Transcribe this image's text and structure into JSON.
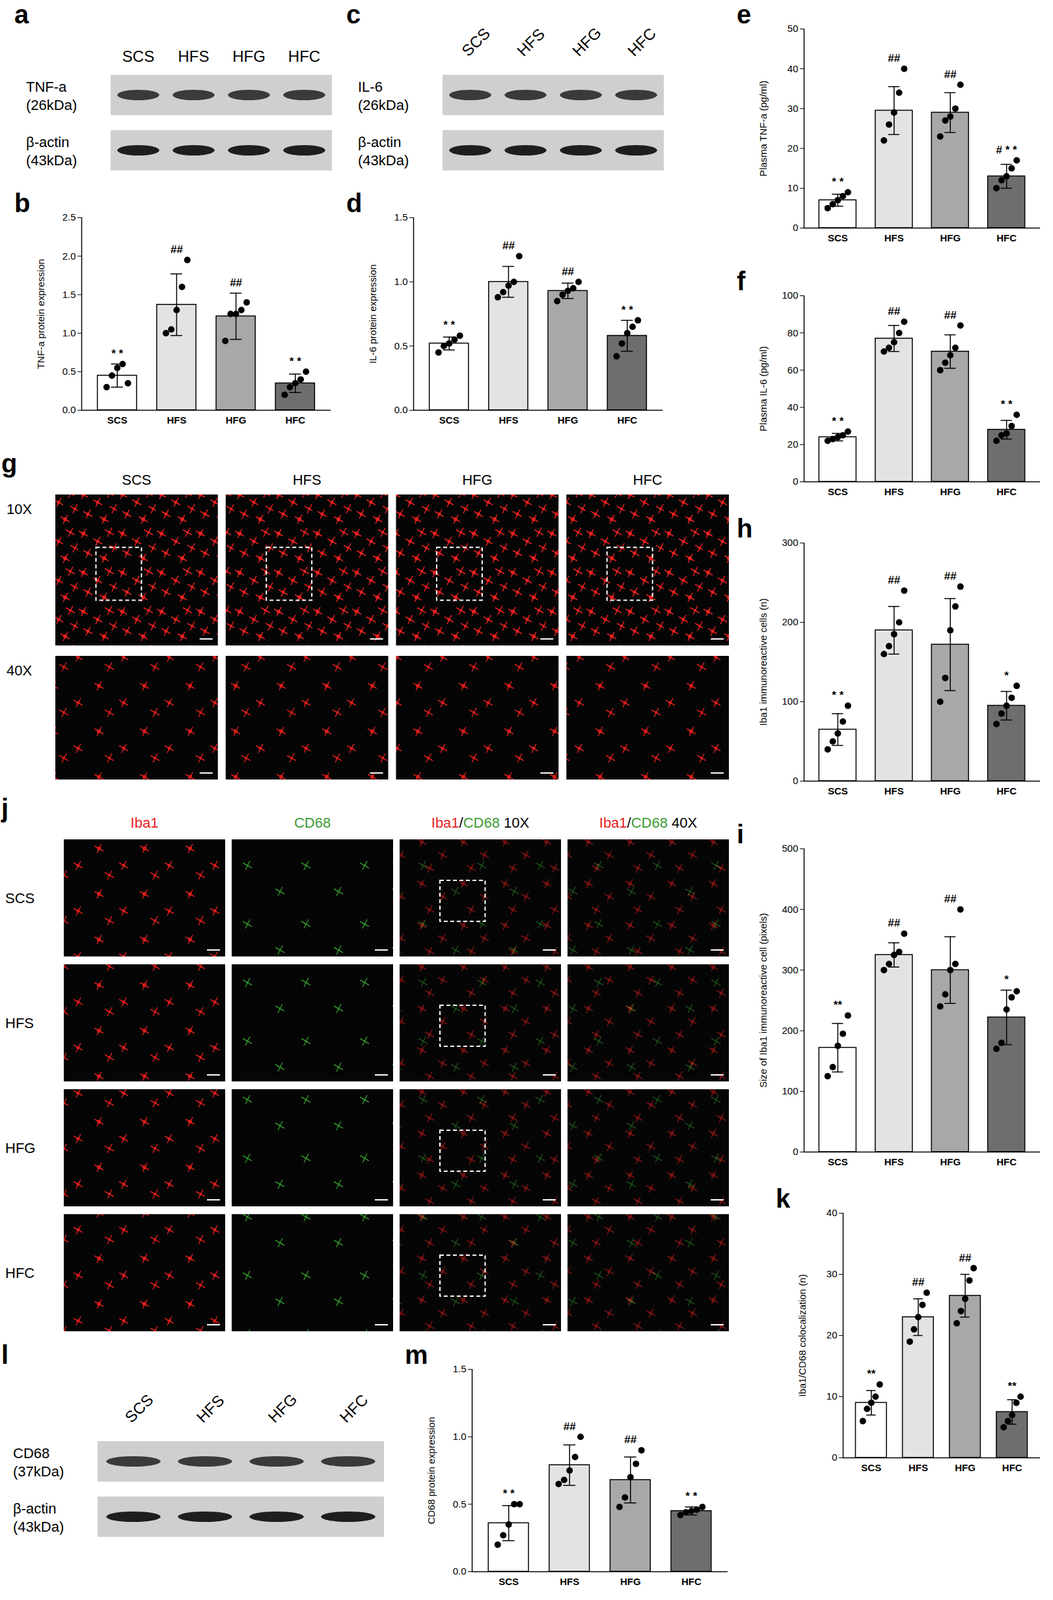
{
  "figure": {
    "blots": [
      {
        "panel": "a",
        "lanes": [
          "SCS",
          "HFS",
          "HFG",
          "HFC"
        ],
        "rows": [
          [
            "TNF-a",
            "(26kDa)"
          ],
          [
            "β-actin",
            "(43kDa)"
          ]
        ]
      },
      {
        "panel": "c",
        "lanes": [
          "SCS",
          "HFS",
          "HFG",
          "HFC"
        ],
        "rows": [
          [
            "IL-6",
            "(26kDa)"
          ],
          [
            "β-actin",
            "(43kDa)"
          ]
        ]
      },
      {
        "panel": "l",
        "lanes": [
          "SCS",
          "HFS",
          "HFG",
          "HFC"
        ],
        "rows": [
          [
            "CD68",
            "(37kDa)"
          ],
          [
            "β-actin",
            "(43kDa)"
          ]
        ]
      }
    ],
    "micrographs": [
      {
        "panel": "g",
        "columns": [
          "SCS",
          "HFS",
          "HFG",
          "HFC"
        ],
        "rows": [
          "10X",
          "40X"
        ]
      },
      {
        "panel": "j",
        "columns": [
          [
            {
              "text": "Iba1",
              "color": "#e8201e"
            }
          ],
          [
            {
              "text": "CD68",
              "color": "#3c9a35"
            }
          ],
          [
            {
              "text": "Iba1",
              "color": "#e8201e"
            },
            {
              "text": "/",
              "color": "#000000"
            },
            {
              "text": "CD68",
              "color": "#3c9a35"
            },
            {
              "text": " 10X",
              "color": "#000000"
            }
          ],
          [
            {
              "text": "Iba1",
              "color": "#e8201e"
            },
            {
              "text": "/",
              "color": "#000000"
            },
            {
              "text": "CD68",
              "color": "#3c9a35"
            },
            {
              "text": " 40X",
              "color": "#000000"
            }
          ]
        ],
        "rows": [
          "SCS",
          "HFS",
          "HFG",
          "HFC"
        ]
      }
    ]
  },
  "chart_data": [
    {
      "panel": "b",
      "type": "bar",
      "categories": [
        "SCS",
        "HFS",
        "HFG",
        "HFC"
      ],
      "colors": [
        "#ffffff",
        "#e3e3e3",
        "#a8a8a8",
        "#6e6e6e"
      ],
      "y_label": "TNF-a protein expression",
      "ylim": [
        0,
        2.5
      ],
      "yticks": [
        {
          "value": 0,
          "label": "0.0"
        },
        0.5,
        {
          "value": 1,
          "label": "1.0"
        },
        1.5,
        {
          "value": 2,
          "label": "2.0"
        },
        2.5
      ],
      "values": [
        0.45,
        1.37,
        1.22,
        0.35
      ],
      "errors": [
        0.15,
        0.4,
        0.3,
        0.12
      ],
      "points": [
        [
          0.3,
          0.45,
          0.55,
          0.6,
          0.35
        ],
        [
          1.0,
          1.05,
          1.3,
          1.6,
          1.95
        ],
        [
          0.9,
          1.25,
          1.25,
          1.3,
          1.4
        ],
        [
          0.2,
          0.3,
          0.35,
          0.4,
          0.5
        ]
      ],
      "annotations": [
        "* *",
        "##",
        "##",
        "* *"
      ]
    },
    {
      "panel": "d",
      "type": "bar",
      "categories": [
        "SCS",
        "HFS",
        "HFG",
        "HFC"
      ],
      "colors": [
        "#ffffff",
        "#e3e3e3",
        "#a8a8a8",
        "#6e6e6e"
      ],
      "y_label": "IL-6 protein expression",
      "ylim": [
        0,
        1.5
      ],
      "yticks": [
        {
          "value": 0,
          "label": "0.0"
        },
        0.5,
        {
          "value": 1,
          "label": "1.0"
        },
        1.5
      ],
      "values": [
        0.52,
        1.0,
        0.93,
        0.58
      ],
      "errors": [
        0.05,
        0.12,
        0.06,
        0.12
      ],
      "points": [
        [
          0.45,
          0.5,
          0.52,
          0.55,
          0.58
        ],
        [
          0.88,
          0.92,
          0.97,
          1.0,
          1.2
        ],
        [
          0.85,
          0.9,
          0.93,
          0.95,
          1.0
        ],
        [
          0.42,
          0.52,
          0.6,
          0.65,
          0.7
        ]
      ],
      "annotations": [
        "* *",
        "##",
        "##",
        "* *"
      ]
    },
    {
      "panel": "e",
      "type": "bar",
      "categories": [
        "SCS",
        "HFS",
        "HFG",
        "HFC"
      ],
      "colors": [
        "#ffffff",
        "#e3e3e3",
        "#a8a8a8",
        "#6e6e6e"
      ],
      "y_label": "Plasma TNF-a (pg/ml)",
      "ylim": [
        0,
        50
      ],
      "yticks": [
        0,
        10,
        20,
        30,
        40,
        50
      ],
      "values": [
        7,
        29.5,
        29,
        13
      ],
      "errors": [
        1.5,
        6,
        5,
        3
      ],
      "points": [
        [
          5,
          6,
          7,
          8,
          9
        ],
        [
          22,
          26,
          29,
          34,
          40
        ],
        [
          23,
          27,
          28,
          30,
          36
        ],
        [
          10,
          12,
          13,
          15,
          17
        ]
      ],
      "annotations": [
        "* *",
        "##",
        "##",
        "# * *"
      ]
    },
    {
      "panel": "f",
      "type": "bar",
      "categories": [
        "SCS",
        "HFS",
        "HFG",
        "HFC"
      ],
      "colors": [
        "#ffffff",
        "#e3e3e3",
        "#a8a8a8",
        "#6e6e6e"
      ],
      "y_label": "Plasma IL-6 (pg/ml)",
      "ylim": [
        0,
        100
      ],
      "yticks": [
        0,
        20,
        40,
        60,
        80,
        100
      ],
      "values": [
        24,
        77,
        70,
        28
      ],
      "errors": [
        2,
        7,
        9,
        5
      ],
      "points": [
        [
          22,
          23,
          24,
          25,
          27
        ],
        [
          70,
          72,
          75,
          80,
          86
        ],
        [
          60,
          64,
          68,
          72,
          84
        ],
        [
          22,
          25,
          26,
          30,
          36
        ]
      ],
      "annotations": [
        "* *",
        "##",
        "##",
        "* *"
      ]
    },
    {
      "panel": "h",
      "type": "bar",
      "categories": [
        "SCS",
        "HFS",
        "HFG",
        "HFC"
      ],
      "colors": [
        "#ffffff",
        "#e3e3e3",
        "#a8a8a8",
        "#6e6e6e"
      ],
      "y_label": "Iba1 immunoreactive cells (n)",
      "ylim": [
        0,
        300
      ],
      "yticks": [
        0,
        100,
        200,
        300
      ],
      "values": [
        65,
        190,
        172,
        95
      ],
      "errors": [
        20,
        30,
        58,
        18
      ],
      "points": [
        [
          40,
          50,
          60,
          75,
          95
        ],
        [
          160,
          170,
          185,
          200,
          240
        ],
        [
          100,
          130,
          190,
          220,
          245
        ],
        [
          72,
          85,
          95,
          105,
          120
        ]
      ],
      "annotations": [
        "* *",
        "##",
        "##",
        "*"
      ]
    },
    {
      "panel": "i",
      "type": "bar",
      "categories": [
        "SCS",
        "HFS",
        "HFG",
        "HFC"
      ],
      "colors": [
        "#ffffff",
        "#e3e3e3",
        "#a8a8a8",
        "#6e6e6e"
      ],
      "y_label": "Size of Iba1 immunoreactive cell (pixels)",
      "ylim": [
        0,
        500
      ],
      "yticks": [
        0,
        100,
        200,
        300,
        400,
        500
      ],
      "values": [
        172,
        325,
        300,
        222
      ],
      "errors": [
        40,
        20,
        55,
        45
      ],
      "points": [
        [
          125,
          140,
          175,
          195,
          225
        ],
        [
          300,
          310,
          325,
          330,
          360
        ],
        [
          240,
          260,
          300,
          310,
          400
        ],
        [
          170,
          180,
          235,
          255,
          265
        ]
      ],
      "annotations": [
        "**",
        "##",
        "##",
        "*"
      ]
    },
    {
      "panel": "k",
      "type": "bar",
      "categories": [
        "SCS",
        "HFS",
        "HFG",
        "HFC"
      ],
      "colors": [
        "#ffffff",
        "#e3e3e3",
        "#a8a8a8",
        "#6e6e6e"
      ],
      "y_label": "Iba1/CD68 colocalization (n)",
      "ylim": [
        0,
        40
      ],
      "yticks": [
        0,
        10,
        20,
        30,
        40
      ],
      "values": [
        9,
        23,
        26.5,
        7.5
      ],
      "errors": [
        2,
        3,
        3.5,
        2
      ],
      "points": [
        [
          6,
          8,
          9,
          10,
          12
        ],
        [
          19,
          21,
          23,
          25,
          27
        ],
        [
          22,
          24,
          26,
          29,
          31
        ],
        [
          5,
          6,
          7,
          9,
          10
        ]
      ],
      "annotations": [
        "**",
        "##",
        "##",
        "**"
      ]
    },
    {
      "panel": "m",
      "type": "bar",
      "categories": [
        "SCS",
        "HFS",
        "HFG",
        "HFC"
      ],
      "colors": [
        "#ffffff",
        "#e3e3e3",
        "#a8a8a8",
        "#6e6e6e"
      ],
      "y_label": "CD68 protein expression",
      "ylim": [
        0,
        1.5
      ],
      "yticks": [
        {
          "value": 0,
          "label": "0.0"
        },
        0.5,
        {
          "value": 1,
          "label": "1.0"
        },
        1.5
      ],
      "values": [
        0.36,
        0.79,
        0.68,
        0.45
      ],
      "errors": [
        0.13,
        0.15,
        0.17,
        0.03
      ],
      "points": [
        [
          0.2,
          0.27,
          0.35,
          0.5,
          0.5
        ],
        [
          0.65,
          0.68,
          0.75,
          0.85,
          1.0
        ],
        [
          0.48,
          0.55,
          0.7,
          0.8,
          0.9
        ],
        [
          0.42,
          0.44,
          0.45,
          0.46,
          0.48
        ]
      ],
      "annotations": [
        "* *",
        "##",
        "##",
        "* *"
      ]
    }
  ]
}
